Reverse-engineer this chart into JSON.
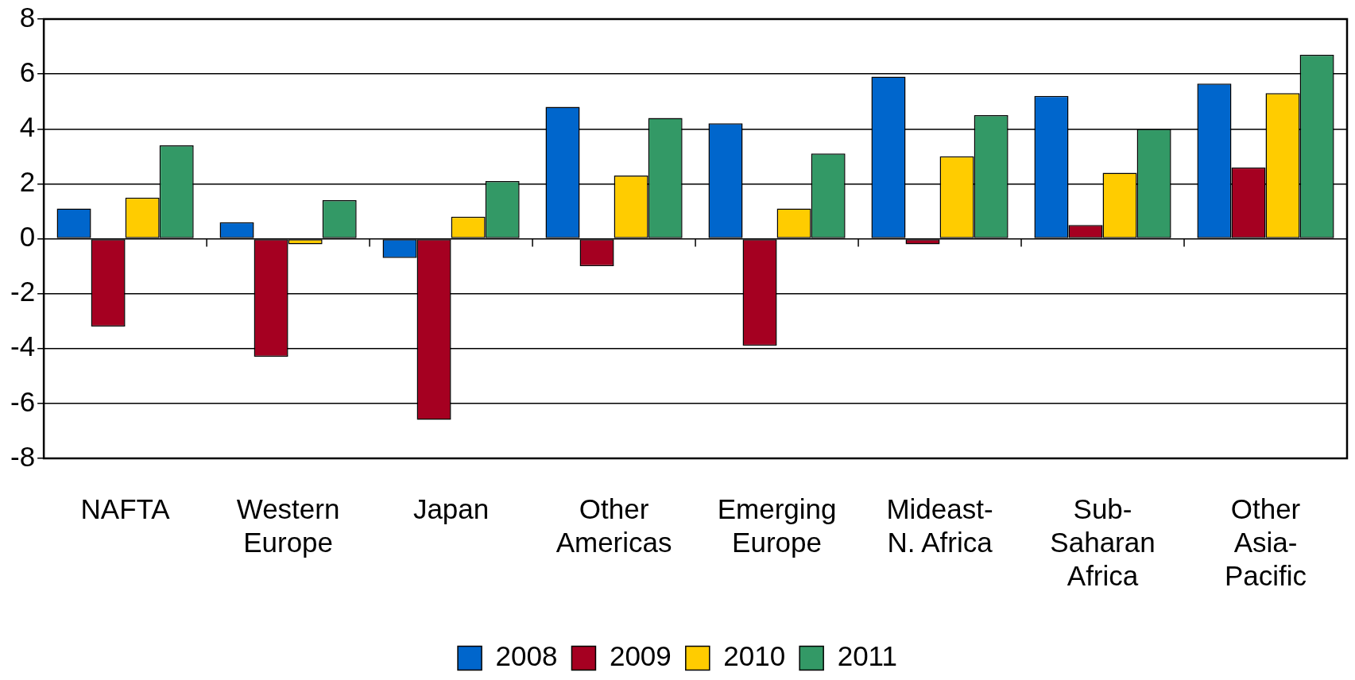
{
  "chart_data": {
    "type": "bar",
    "categories": [
      "NAFTA",
      "Western Europe",
      "Japan",
      "Other Americas",
      "Emerging Europe",
      "Mideast-N. Africa",
      "Sub-Saharan Africa",
      "Other Asia-Pacific"
    ],
    "series": [
      {
        "name": "2008",
        "color": "#0066cc",
        "values": [
          1.1,
          0.6,
          -0.7,
          4.8,
          4.2,
          5.9,
          5.2,
          5.65
        ]
      },
      {
        "name": "2009",
        "color": "#a50021",
        "values": [
          -3.2,
          -4.3,
          -6.6,
          -1.0,
          -3.9,
          -0.2,
          0.5,
          2.6
        ]
      },
      {
        "name": "2010",
        "color": "#ffcc00",
        "values": [
          1.5,
          -0.2,
          0.8,
          2.3,
          1.1,
          3.0,
          2.4,
          5.3
        ]
      },
      {
        "name": "2011",
        "color": "#339966",
        "values": [
          3.4,
          1.4,
          2.1,
          4.4,
          3.1,
          4.5,
          4.0,
          6.7
        ]
      }
    ],
    "ylim": [
      -8,
      8
    ],
    "yticks": [
      -8,
      -6,
      -4,
      -2,
      0,
      2,
      4,
      6,
      8
    ],
    "grid": "y",
    "legend": "bottom"
  }
}
